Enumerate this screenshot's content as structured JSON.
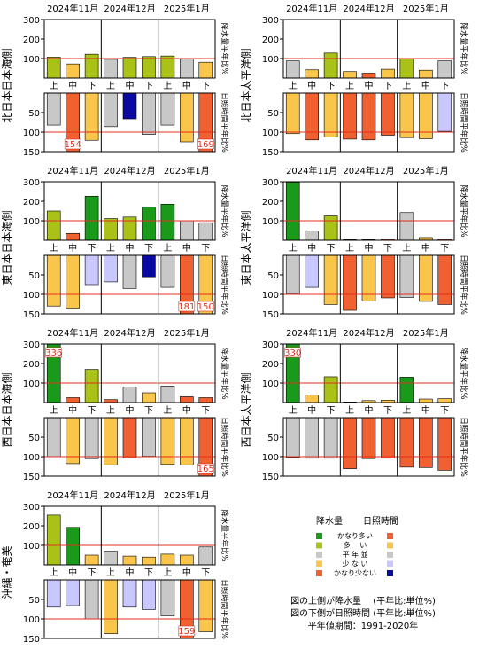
{
  "colors": {
    "precip": {
      "much_above": "#1a9a1a",
      "above": "#aac218",
      "normal": "#c8c8c8",
      "below": "#f9c54a",
      "much_below": "#f06030"
    },
    "sun": {
      "much_above": "#f06030",
      "above": "#f9c54a",
      "normal": "#c8c8c8",
      "below": "#c8c8ff",
      "much_below": "#0a0aa0"
    },
    "normal_line": "#e03020"
  },
  "months": [
    "2024年11月",
    "2024年12月",
    "2025年1月"
  ],
  "decades": [
    "上",
    "中",
    "下",
    "上",
    "中",
    "下",
    "上",
    "中",
    "下"
  ],
  "side_labels": {
    "precip": "降水量平年比%",
    "sun": "日照時間平年比%"
  },
  "legend": {
    "header_precip": "降水量",
    "header_sun": "日照時間",
    "items": [
      {
        "label": "かなり多い",
        "precip": "much_above",
        "sun": "much_above"
      },
      {
        "label": "多 　い",
        "precip": "above",
        "sun": "above"
      },
      {
        "label": "平 年 並",
        "precip": "normal",
        "sun": "normal"
      },
      {
        "label": "少 な い",
        "precip": "below",
        "sun": "below"
      },
      {
        "label": "かなり少ない",
        "precip": "much_below",
        "sun": "much_below"
      }
    ],
    "notes": [
      "図の上側が降水量 　(平年比:単位%)",
      "図の下側が日照時間 (平年比:単位%)",
      "平年値期間：1991-2020年"
    ]
  },
  "chart_data": [
    {
      "type": "bar",
      "region": "北日本日本海側",
      "precip": {
        "ylim": [
          0,
          300
        ],
        "ticks": [
          100,
          200,
          300
        ],
        "values": [
          107,
          72,
          122,
          96,
          106,
          110,
          113,
          97,
          81
        ],
        "classes": [
          "above",
          "below",
          "above",
          "normal",
          "above",
          "above",
          "above",
          "normal",
          "below"
        ],
        "labels": []
      },
      "sun": {
        "ylim": [
          0,
          150
        ],
        "ticks": [
          50,
          100,
          150
        ],
        "values": [
          82,
          154,
          121,
          86,
          66,
          106,
          82,
          125,
          169
        ],
        "classes": [
          "normal",
          "much_above",
          "above",
          "normal",
          "much_below",
          "normal",
          "normal",
          "above",
          "much_above"
        ],
        "labels": [
          {
            "index": 1,
            "text": "154"
          },
          {
            "index": 8,
            "text": "169"
          }
        ]
      }
    },
    {
      "type": "bar",
      "region": "北日本太平洋側",
      "precip": {
        "ylim": [
          0,
          300
        ],
        "ticks": [
          100,
          200,
          300
        ],
        "values": [
          88,
          42,
          128,
          33,
          25,
          45,
          100,
          40,
          88
        ],
        "classes": [
          "normal",
          "below",
          "above",
          "below",
          "much_below",
          "below",
          "above",
          "below",
          "normal"
        ],
        "labels": []
      },
      "sun": {
        "ylim": [
          0,
          150
        ],
        "ticks": [
          50,
          100,
          150
        ],
        "values": [
          104,
          120,
          112,
          118,
          120,
          108,
          114,
          117,
          98
        ],
        "classes": [
          "above",
          "much_above",
          "above",
          "much_above",
          "much_above",
          "much_above",
          "above",
          "above",
          "below"
        ],
        "labels": []
      }
    },
    {
      "type": "bar",
      "region": "東日本日本海側",
      "precip": {
        "ylim": [
          0,
          300
        ],
        "ticks": [
          100,
          200,
          300
        ],
        "values": [
          150,
          35,
          226,
          111,
          119,
          170,
          185,
          100,
          90
        ],
        "classes": [
          "above",
          "much_below",
          "much_above",
          "above",
          "above",
          "much_above",
          "much_above",
          "normal",
          "normal"
        ],
        "labels": []
      },
      "sun": {
        "ylim": [
          0,
          150
        ],
        "ticks": [
          50,
          100,
          150
        ],
        "values": [
          130,
          135,
          75,
          68,
          85,
          55,
          82,
          181,
          150
        ],
        "classes": [
          "above",
          "above",
          "below",
          "below",
          "normal",
          "much_below",
          "normal",
          "much_above",
          "above"
        ],
        "labels": [
          {
            "index": 7,
            "text": "181"
          },
          {
            "index": 8,
            "text": "150"
          }
        ]
      }
    },
    {
      "type": "bar",
      "region": "東日本太平洋側",
      "precip": {
        "ylim": [
          0,
          300
        ],
        "ticks": [
          100,
          200,
          300
        ],
        "values": [
          298,
          47,
          125,
          3,
          3,
          5,
          142,
          14,
          5
        ],
        "classes": [
          "much_above",
          "normal",
          "above",
          "much_below",
          "much_below",
          "much_below",
          "normal",
          "below",
          "much_below"
        ],
        "labels": []
      },
      "sun": {
        "ylim": [
          0,
          150
        ],
        "ticks": [
          50,
          100,
          150
        ],
        "values": [
          99,
          82,
          126,
          141,
          117,
          109,
          108,
          118,
          126
        ],
        "classes": [
          "normal",
          "below",
          "above",
          "much_above",
          "above",
          "much_above",
          "normal",
          "above",
          "much_above"
        ],
        "labels": []
      }
    },
    {
      "type": "bar",
      "region": "西日本日本海側",
      "precip": {
        "ylim": [
          0,
          300
        ],
        "ticks": [
          100,
          200,
          300
        ],
        "values": [
          336,
          25,
          170,
          15,
          80,
          50,
          85,
          30,
          25
        ],
        "classes": [
          "much_above",
          "much_below",
          "above",
          "much_below",
          "normal",
          "below",
          "normal",
          "much_below",
          "much_below"
        ],
        "labels": [
          {
            "index": 0,
            "text": "336"
          }
        ]
      },
      "sun": {
        "ylim": [
          0,
          150
        ],
        "ticks": [
          50,
          100,
          150
        ],
        "values": [
          100,
          118,
          105,
          121,
          103,
          99,
          120,
          121,
          165
        ],
        "classes": [
          "normal",
          "above",
          "normal",
          "above",
          "much_above",
          "normal",
          "above",
          "above",
          "much_above"
        ],
        "labels": [
          {
            "index": 8,
            "text": "165"
          }
        ]
      }
    },
    {
      "type": "bar",
      "region": "西日本太平洋側",
      "precip": {
        "ylim": [
          0,
          300
        ],
        "ticks": [
          100,
          200,
          300
        ],
        "values": [
          330,
          38,
          132,
          3,
          10,
          12,
          130,
          18,
          20
        ],
        "classes": [
          "much_above",
          "below",
          "above",
          "much_below",
          "below",
          "below",
          "much_above",
          "below",
          "below"
        ],
        "labels": [
          {
            "index": 0,
            "text": "330"
          }
        ]
      },
      "sun": {
        "ylim": [
          0,
          150
        ],
        "ticks": [
          50,
          100,
          150
        ],
        "values": [
          102,
          104,
          104,
          131,
          105,
          104,
          127,
          128,
          135
        ],
        "classes": [
          "normal",
          "normal",
          "normal",
          "much_above",
          "much_above",
          "much_above",
          "much_above",
          "much_above",
          "much_above"
        ],
        "labels": []
      }
    },
    {
      "type": "bar",
      "region": "沖縄・奄美",
      "precip": {
        "ylim": [
          0,
          300
        ],
        "ticks": [
          100,
          200,
          300
        ],
        "values": [
          255,
          192,
          50,
          70,
          45,
          40,
          55,
          50,
          92
        ],
        "classes": [
          "above",
          "much_above",
          "below",
          "normal",
          "below",
          "below",
          "below",
          "below",
          "normal"
        ],
        "labels": []
      },
      "sun": {
        "ylim": [
          0,
          150
        ],
        "ticks": [
          50,
          100,
          150
        ],
        "values": [
          70,
          66,
          100,
          138,
          70,
          76,
          92,
          159,
          133
        ],
        "classes": [
          "below",
          "below",
          "normal",
          "above",
          "below",
          "below",
          "normal",
          "much_above",
          "above"
        ],
        "labels": [
          {
            "index": 7,
            "text": "159"
          }
        ]
      }
    }
  ]
}
